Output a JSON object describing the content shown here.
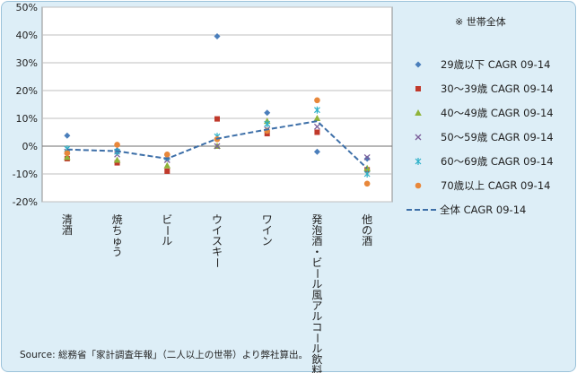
{
  "chart_data": {
    "type": "scatter",
    "categories": [
      "清酒",
      "焼ちゅう",
      "ビール",
      "ウイスキー",
      "ワイン",
      "発泡酒・ビール風アルコール飲料",
      "他の酒"
    ],
    "y_ticks": [
      "50%",
      "40%",
      "30%",
      "20%",
      "10%",
      "0%",
      "-10%",
      "-20%"
    ],
    "ylim": [
      -20,
      50
    ],
    "grid": true,
    "legend_position": "right",
    "note": "※ 世帯全体",
    "series": [
      {
        "name": "29歳以下 CAGR 09-14",
        "marker": "diamond",
        "color": "#4a7ebb",
        "values": [
          3.8,
          -1.5,
          -4.5,
          39.5,
          12,
          -2,
          -4.5
        ]
      },
      {
        "name": "30～39歳 CAGR 09-14",
        "marker": "square",
        "color": "#c0392b",
        "values": [
          -4.5,
          -6,
          -9,
          9.8,
          4.5,
          5,
          -8.5
        ]
      },
      {
        "name": "40～49歳 CAGR 09-14",
        "marker": "triangle",
        "color": "#8fb33a",
        "values": [
          -4,
          -5,
          -7,
          0,
          9,
          10,
          -8
        ]
      },
      {
        "name": "50～59歳 CAGR 09-14",
        "marker": "x",
        "color": "#7a5c99",
        "values": [
          -2,
          -3,
          -5,
          0,
          6,
          7,
          -4
        ]
      },
      {
        "name": "60～69歳 CAGR 09-14",
        "marker": "star",
        "color": "#2bb0c8",
        "values": [
          -1,
          -2,
          -4,
          3.5,
          8,
          13,
          -10
        ]
      },
      {
        "name": "70歳以上 CAGR 09-14",
        "marker": "circle",
        "color": "#e8873a",
        "values": [
          -2.5,
          0.5,
          -3,
          2.5,
          5.5,
          16.5,
          -13.5
        ]
      },
      {
        "name": "全体 CAGR 09-14",
        "marker": "dashed-line",
        "color": "#3d6fa8",
        "values": [
          -1.2,
          -1.8,
          -4.5,
          2.7,
          6,
          9,
          -8
        ]
      }
    ],
    "source": "Source: 総務省「家計調査年報」（二人以上の世帯）より弊社算出。"
  }
}
